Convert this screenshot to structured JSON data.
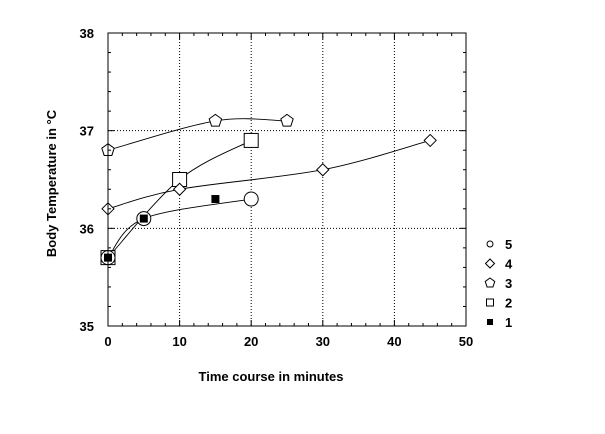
{
  "chart_data": {
    "type": "scatter",
    "title": "",
    "xlabel": "Time course in minutes",
    "ylabel": "Body Temperature in °C",
    "xlim": [
      0,
      50
    ],
    "ylim": [
      35,
      38
    ],
    "xticks": [
      0,
      10,
      20,
      30,
      40,
      50
    ],
    "yticks": [
      35,
      36,
      37,
      38
    ],
    "grid": true,
    "legend_position": "right",
    "series": [
      {
        "name": "5",
        "marker": "circle-large",
        "smooth": true,
        "x": [
          0,
          5,
          20
        ],
        "y": [
          35.7,
          36.1,
          36.3
        ]
      },
      {
        "name": "4",
        "marker": "diamond",
        "smooth": true,
        "x": [
          0,
          10,
          30,
          45
        ],
        "y": [
          36.2,
          36.4,
          36.6,
          36.9
        ]
      },
      {
        "name": "3",
        "marker": "pentagon",
        "smooth": true,
        "x": [
          0,
          15,
          25
        ],
        "y": [
          36.8,
          37.1,
          37.1
        ]
      },
      {
        "name": "2",
        "marker": "square-large",
        "smooth": true,
        "x": [
          0,
          10,
          20
        ],
        "y": [
          35.7,
          36.5,
          36.9
        ]
      },
      {
        "name": "1",
        "marker": "square-filled",
        "smooth": false,
        "x": [
          0,
          5,
          15
        ],
        "y": [
          35.7,
          36.1,
          36.3
        ]
      }
    ]
  }
}
